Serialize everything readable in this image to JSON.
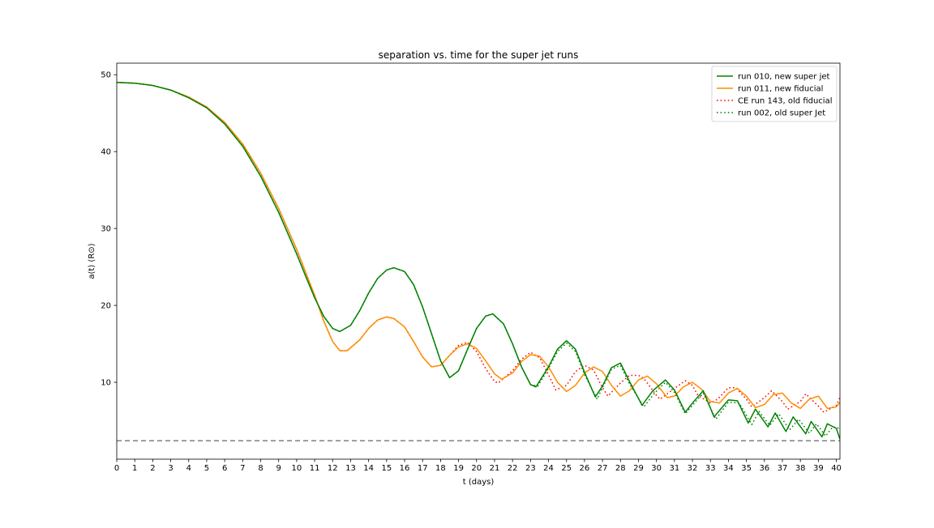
{
  "chart_data": {
    "type": "line",
    "title": "separation vs. time for the super jet runs",
    "xlabel": "t (days)",
    "ylabel": "a(t) (R⊙)",
    "xlim": [
      0,
      40.2
    ],
    "ylim": [
      0,
      51.5
    ],
    "xticks": [
      0,
      1,
      2,
      3,
      4,
      5,
      6,
      7,
      8,
      9,
      10,
      11,
      12,
      13,
      14,
      15,
      16,
      17,
      18,
      19,
      20,
      21,
      22,
      23,
      24,
      25,
      26,
      27,
      28,
      29,
      30,
      31,
      32,
      33,
      34,
      35,
      36,
      37,
      38,
      39,
      40
    ],
    "yticks": [
      10,
      20,
      30,
      40,
      50
    ],
    "grid": false,
    "legend_position": "top-right",
    "reference_line": {
      "y": 2.4,
      "style": "dashed",
      "color": "#808080"
    },
    "series": [
      {
        "name": "run 010, new super jet",
        "color": "#008000",
        "style": "solid",
        "x": [
          0,
          1,
          2,
          3,
          4,
          5,
          6,
          7,
          8,
          9,
          10,
          10.5,
          11,
          11.5,
          12,
          12.4,
          13,
          13.5,
          14,
          14.5,
          15,
          15.4,
          16,
          16.5,
          17,
          17.5,
          18,
          18.5,
          19,
          19.5,
          20,
          20.5,
          20.9,
          21.5,
          22,
          22.5,
          23,
          23.3,
          24,
          24.5,
          25,
          25.5,
          26,
          26.6,
          27,
          27.5,
          28,
          28.5,
          29.2,
          29.8,
          30.5,
          31,
          31.6,
          32,
          32.6,
          33.2,
          34,
          34.5,
          35.1,
          35.5,
          36.2,
          36.6,
          37.2,
          37.6,
          38.3,
          38.6,
          39.2,
          39.5,
          40,
          40.2
        ],
        "y": [
          49,
          48.9,
          48.6,
          48.0,
          47.0,
          45.7,
          43.6,
          40.7,
          36.8,
          32.1,
          26.7,
          23.8,
          21.0,
          18.6,
          17.0,
          16.6,
          17.4,
          19.3,
          21.6,
          23.5,
          24.6,
          24.9,
          24.4,
          22.7,
          19.8,
          16.3,
          12.8,
          10.6,
          11.5,
          14.3,
          17.0,
          18.6,
          18.9,
          17.6,
          15.0,
          12.0,
          9.7,
          9.4,
          12.0,
          14.3,
          15.4,
          14.3,
          11.3,
          8.1,
          9.5,
          11.9,
          12.5,
          10.1,
          7.0,
          8.9,
          10.3,
          9.0,
          6.1,
          7.3,
          8.9,
          5.5,
          7.7,
          7.6,
          4.7,
          6.5,
          4.2,
          6.0,
          3.6,
          5.5,
          3.3,
          4.9,
          2.9,
          4.6,
          4.0,
          2.6
        ]
      },
      {
        "name": "run 011, new fiducial",
        "color": "#ff8c00",
        "style": "solid",
        "x": [
          0,
          1,
          2,
          3,
          4,
          5,
          6,
          7,
          8,
          9,
          10,
          11,
          11.5,
          12,
          12.4,
          12.8,
          13.5,
          14,
          14.5,
          15,
          15.4,
          16,
          16.5,
          17,
          17.5,
          18,
          18.5,
          19,
          19.5,
          20,
          20.5,
          21,
          21.4,
          22,
          22.5,
          23,
          23.5,
          24,
          24.5,
          25,
          25.5,
          26,
          26.5,
          27,
          27.5,
          28,
          28.5,
          29,
          29.5,
          30,
          30.6,
          31,
          31.5,
          32,
          32.5,
          33,
          33.5,
          34,
          34.5,
          35,
          35.5,
          36,
          36.5,
          37,
          37.5,
          38,
          38.5,
          39,
          39.5,
          40,
          40.2
        ],
        "y": [
          49,
          48.9,
          48.6,
          48.0,
          47.1,
          45.8,
          43.8,
          41.0,
          37.2,
          32.6,
          27.3,
          21.3,
          18.0,
          15.3,
          14.1,
          14.1,
          15.5,
          17.0,
          18.1,
          18.5,
          18.3,
          17.2,
          15.3,
          13.3,
          12.0,
          12.2,
          13.5,
          14.6,
          15.0,
          14.4,
          12.8,
          11.1,
          10.4,
          11.2,
          12.7,
          13.6,
          13.4,
          12.0,
          10.0,
          8.8,
          9.6,
          11.2,
          12.0,
          11.4,
          9.6,
          8.2,
          8.9,
          10.3,
          10.8,
          9.8,
          8.0,
          8.2,
          9.4,
          10.0,
          9.1,
          7.5,
          7.3,
          8.6,
          9.2,
          8.2,
          6.7,
          7.1,
          8.4,
          8.6,
          7.3,
          6.6,
          7.8,
          8.2,
          6.6,
          6.8,
          7.4
        ]
      },
      {
        "name": "CE run 143, old fiducial",
        "color": "#ff0000",
        "style": "dotted",
        "x": [
          0,
          1,
          2,
          3,
          4,
          5,
          6,
          7,
          8,
          9,
          10,
          11,
          11.5,
          12,
          12.4,
          12.8,
          13.5,
          14,
          14.5,
          15,
          15.4,
          16,
          16.5,
          17,
          17.5,
          18,
          18.5,
          19,
          19.5,
          20,
          20.5,
          21,
          21.2,
          22,
          22.5,
          23,
          23.5,
          24,
          24.4,
          25,
          25.5,
          26,
          26.5,
          27,
          27.3,
          28,
          28.5,
          29,
          29.3,
          30,
          30.2,
          31,
          31.6,
          32,
          32.3,
          33,
          33.4,
          34,
          34.4,
          35,
          35.3,
          36,
          36.4,
          37,
          37.3,
          38,
          38.3,
          39,
          39.3,
          40,
          40.2
        ],
        "y": [
          49,
          48.9,
          48.6,
          48.0,
          47.1,
          45.8,
          43.8,
          41.0,
          37.2,
          32.6,
          27.3,
          21.3,
          18.0,
          15.3,
          14.1,
          14.1,
          15.5,
          17.0,
          18.1,
          18.5,
          18.3,
          17.2,
          15.3,
          13.3,
          12.0,
          12.2,
          13.5,
          14.8,
          15.2,
          14.0,
          11.8,
          10.1,
          9.9,
          11.5,
          13.0,
          13.9,
          13.2,
          11.0,
          9.0,
          9.6,
          11.4,
          12.2,
          11.6,
          9.3,
          8.2,
          9.9,
          10.9,
          10.9,
          10.5,
          8.3,
          7.8,
          9.2,
          10.2,
          9.6,
          8.3,
          7.3,
          7.8,
          9.3,
          9.3,
          7.8,
          6.8,
          8.0,
          8.9,
          7.5,
          6.5,
          7.5,
          8.5,
          6.9,
          6.1,
          7.0,
          8.0
        ]
      },
      {
        "name": "run 002, old super Jet",
        "color": "#008000",
        "style": "dotted",
        "x": [
          0,
          1,
          2,
          3,
          4,
          5,
          6,
          7,
          8,
          9,
          10,
          10.5,
          11,
          11.5,
          12,
          12.4,
          13,
          13.5,
          14,
          14.5,
          15,
          15.4,
          16,
          16.5,
          17,
          17.5,
          18,
          18.5,
          19,
          19.5,
          20,
          20.5,
          20.9,
          21.5,
          22,
          22.5,
          23,
          23.4,
          24,
          24.5,
          25,
          25.5,
          26,
          26.7,
          27,
          27.5,
          28,
          28.5,
          29.3,
          29.9,
          30.5,
          31,
          31.6,
          32,
          32.6,
          33.3,
          34,
          34.6,
          35.3,
          35.7,
          36.3,
          36.8,
          37.4,
          37.9,
          38.5,
          38.9,
          39.4,
          39.8,
          40.2
        ],
        "y": [
          49,
          48.9,
          48.6,
          48.0,
          47.0,
          45.7,
          43.6,
          40.7,
          36.8,
          32.1,
          26.7,
          23.8,
          21.0,
          18.6,
          17.0,
          16.6,
          17.4,
          19.3,
          21.6,
          23.5,
          24.6,
          24.9,
          24.4,
          22.7,
          19.8,
          16.3,
          12.8,
          10.6,
          11.5,
          14.3,
          17.0,
          18.6,
          18.9,
          17.6,
          15.0,
          12.0,
          9.7,
          9.5,
          11.8,
          14.0,
          15.1,
          14.0,
          11.0,
          7.8,
          9.3,
          11.7,
          12.2,
          9.8,
          6.8,
          8.6,
          10.0,
          8.7,
          5.9,
          7.0,
          8.6,
          5.2,
          7.4,
          7.3,
          4.5,
          6.2,
          4.4,
          5.9,
          3.8,
          5.2,
          3.4,
          4.6,
          3.0,
          4.2,
          4.0
        ]
      }
    ]
  }
}
